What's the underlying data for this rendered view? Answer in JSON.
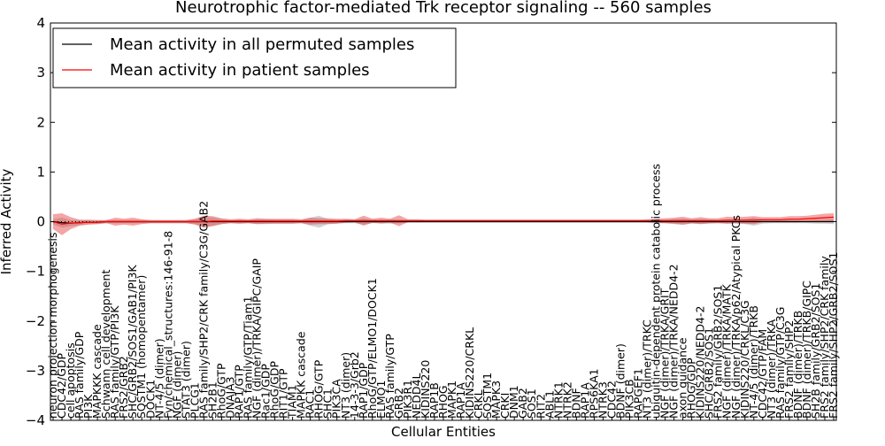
{
  "chart_data": {
    "type": "line",
    "title": "Neurotrophic factor-mediated Trk receptor signaling -- 560 samples",
    "xlabel": "Cellular Entities",
    "ylabel": "Inferred Activity",
    "ylim": [
      -4,
      4
    ],
    "yticks": [
      "-4",
      "-3",
      "-2",
      "-1",
      "0",
      "1",
      "2",
      "3",
      "4"
    ],
    "legend": {
      "placement": "top-left",
      "entries": [
        {
          "label": "Mean activity in all permuted samples",
          "color": "#000000"
        },
        {
          "label": "Mean activity in patient samples",
          "color": "#ff0000"
        }
      ]
    },
    "categories": [
      "neuron projection morphogenesis",
      "CDC42/GDP",
      "cell apoptosis",
      "RAS family/GDP",
      "PI3K",
      "MAPKKK cascade",
      "Schwann cell development",
      "RAS family/GTP/PI3K",
      "FRS2/GRB2",
      "SHC/GRB2/SOS1/GAB1/PI3K",
      "SQSTM1 (homopentamer)",
      "DOCK1",
      "NT-4/5 (dimer)",
      "Fyn/chemical_structures:146-91-8",
      "NGF (dimer)",
      "STAT3 (dimer)",
      "PLCG1",
      "RAS family/SHP2/CRK family/C3G/GAB2",
      "SH2B1",
      "RhoG/GTP",
      "DNAJA3",
      "RAP1/GTP",
      "RAS family/GTP/Tiam1",
      "NGF (dimer)/TRKA/GIPC/GAIP",
      "Rac1/GDP",
      "RhoG/GDP",
      "RIT1/GTP",
      "TIAM1",
      "MAPKK cascade",
      "RAC1",
      "RHOG/GTP",
      "SHC1",
      "PIK3CA",
      "NT3 (dimer)",
      "14-3-3/Grb2",
      "RAP1/GDP",
      "RhoG/GTP/ELMO1/DOCK1",
      "ELMO1",
      "RAS family/GTP",
      "GRB2",
      "PIK3R1",
      "NEDD4L",
      "KIDINS220",
      "RAP1B",
      "RHOG",
      "MAPK1",
      "RAP1A",
      "KIDINS220/CRKL",
      "CRKL",
      "SQSTM1",
      "MAPK3",
      "CRKI",
      "DNM1",
      "GAB2",
      "SOS1",
      "RIT2",
      "ABL1",
      "NTRK1",
      "NTRK2",
      "BDNF",
      "RAP1A",
      "RPS6KA1",
      "NTRK3",
      "CDC42",
      "BDNF (dimer)",
      "PIK3CB",
      "RAPGEF1",
      "NT3 (dimer)/TRKC",
      "ubiquitin-dependent protein catabolic process",
      "NGF (dimer)/TRKA/GRIT",
      "NGF (dimer)/TRKA/NEDD4-2",
      "axon guidance",
      "RHOG/GDP",
      "KIDINS220/NEDD4-2",
      "SHC/GRB2/SOS1",
      "FRS2 family/GRB2/SOS1",
      "NGF (dimer)/TRKA/MATK",
      "NGF (dimer)/TRKA/p62/Atypical PKCs",
      "KIDINS220/CRKL/C3G",
      "NT-4/5 (dimer)/TRKB",
      "CDC42/GTP/FAM",
      "NT3 (dimer)/TRKA",
      "RAS family/GTP/C3G",
      "FRS2 family/SHP2",
      "BDNF (dimer)/TRKB",
      "BDNF (dimer)/TRKB/GIPC",
      "SH2B family/GRB2/SOS1",
      "FRS2 family/SHP2/CRK family",
      "FRS2 family/SHP2/GRB2/SOS1"
    ],
    "series": [
      {
        "name": "Mean activity in all permuted samples",
        "color": "#000000",
        "values": [
          0.0,
          -0.02,
          -0.03,
          -0.02,
          -0.01,
          -0.01,
          0.0,
          0.0,
          0.0,
          0.0,
          0.0,
          0.0,
          0.0,
          0.0,
          0.0,
          0.0,
          0.0,
          0.0,
          0.0,
          0.0,
          0.0,
          0.0,
          0.0,
          0.0,
          0.0,
          0.0,
          0.0,
          0.0,
          0.0,
          0.0,
          0.0,
          0.0,
          0.0,
          0.0,
          0.0,
          0.0,
          0.0,
          0.0,
          0.0,
          0.0,
          0.0,
          0.0,
          0.0,
          0.0,
          0.0,
          0.0,
          0.0,
          0.0,
          0.0,
          0.0,
          0.0,
          0.0,
          0.0,
          0.0,
          0.0,
          0.0,
          0.0,
          0.0,
          0.0,
          0.0,
          0.0,
          0.0,
          0.0,
          0.0,
          0.0,
          0.0,
          0.0,
          0.0,
          0.0,
          0.0,
          0.0,
          0.0,
          0.0,
          0.0,
          0.0,
          0.0,
          0.0,
          0.0,
          0.0,
          0.0,
          0.0,
          0.0,
          0.0,
          0.0,
          0.0,
          0.0,
          0.0,
          0.0,
          0.0
        ],
        "band": [
          0.05,
          0.1,
          0.06,
          0.05,
          0.04,
          0.04,
          0.03,
          0.03,
          0.03,
          0.03,
          0.03,
          0.03,
          0.03,
          0.03,
          0.03,
          0.03,
          0.05,
          0.1,
          0.08,
          0.05,
          0.03,
          0.04,
          0.03,
          0.05,
          0.05,
          0.04,
          0.04,
          0.04,
          0.03,
          0.08,
          0.12,
          0.05,
          0.04,
          0.03,
          0.03,
          0.06,
          0.03,
          0.03,
          0.04,
          0.03,
          0.02,
          0.02,
          0.02,
          0.02,
          0.02,
          0.02,
          0.02,
          0.02,
          0.02,
          0.02,
          0.02,
          0.02,
          0.02,
          0.02,
          0.02,
          0.02,
          0.02,
          0.02,
          0.02,
          0.02,
          0.02,
          0.02,
          0.02,
          0.02,
          0.02,
          0.02,
          0.02,
          0.02,
          0.04,
          0.03,
          0.05,
          0.06,
          0.04,
          0.05,
          0.04,
          0.03,
          0.04,
          0.04,
          0.05,
          0.08,
          0.04,
          0.03,
          0.03,
          0.03,
          0.03,
          0.03,
          0.04,
          0.04,
          0.05
        ]
      },
      {
        "name": "Mean activity in patient samples",
        "color": "#ff0000",
        "values": [
          0.0,
          -0.05,
          -0.03,
          -0.02,
          -0.01,
          -0.01,
          0.0,
          0.0,
          0.0,
          0.0,
          0.0,
          0.0,
          0.0,
          0.0,
          0.0,
          0.0,
          0.0,
          0.0,
          0.01,
          0.01,
          0.01,
          0.01,
          0.01,
          0.01,
          0.01,
          0.01,
          0.01,
          0.01,
          0.01,
          0.01,
          0.01,
          0.01,
          0.01,
          0.02,
          0.02,
          0.02,
          0.02,
          0.02,
          0.02,
          0.02,
          0.02,
          0.02,
          0.02,
          0.02,
          0.02,
          0.02,
          0.02,
          0.02,
          0.02,
          0.02,
          0.02,
          0.02,
          0.02,
          0.02,
          0.02,
          0.02,
          0.02,
          0.02,
          0.02,
          0.02,
          0.02,
          0.02,
          0.02,
          0.02,
          0.02,
          0.02,
          0.02,
          0.02,
          0.02,
          0.02,
          0.02,
          0.02,
          0.02,
          0.02,
          0.02,
          0.02,
          0.03,
          0.03,
          0.03,
          0.03,
          0.04,
          0.04,
          0.04,
          0.05,
          0.05,
          0.06,
          0.07,
          0.08,
          0.09
        ],
        "band": [
          0.15,
          0.22,
          0.12,
          0.06,
          0.05,
          0.04,
          0.03,
          0.08,
          0.06,
          0.08,
          0.05,
          0.03,
          0.03,
          0.03,
          0.03,
          0.03,
          0.06,
          0.12,
          0.1,
          0.06,
          0.04,
          0.05,
          0.04,
          0.06,
          0.05,
          0.05,
          0.05,
          0.05,
          0.04,
          0.07,
          0.06,
          0.06,
          0.05,
          0.04,
          0.03,
          0.1,
          0.04,
          0.06,
          0.04,
          0.11,
          0.03,
          0.03,
          0.02,
          0.02,
          0.02,
          0.02,
          0.02,
          0.02,
          0.02,
          0.02,
          0.02,
          0.02,
          0.02,
          0.02,
          0.02,
          0.02,
          0.02,
          0.02,
          0.02,
          0.02,
          0.02,
          0.02,
          0.02,
          0.02,
          0.02,
          0.02,
          0.02,
          0.03,
          0.04,
          0.05,
          0.06,
          0.08,
          0.05,
          0.07,
          0.05,
          0.05,
          0.07,
          0.06,
          0.07,
          0.08,
          0.05,
          0.05,
          0.05,
          0.06,
          0.06,
          0.06,
          0.07,
          0.08,
          0.08
        ]
      }
    ],
    "reference_line": {
      "y": 0,
      "style": "dotted"
    }
  }
}
